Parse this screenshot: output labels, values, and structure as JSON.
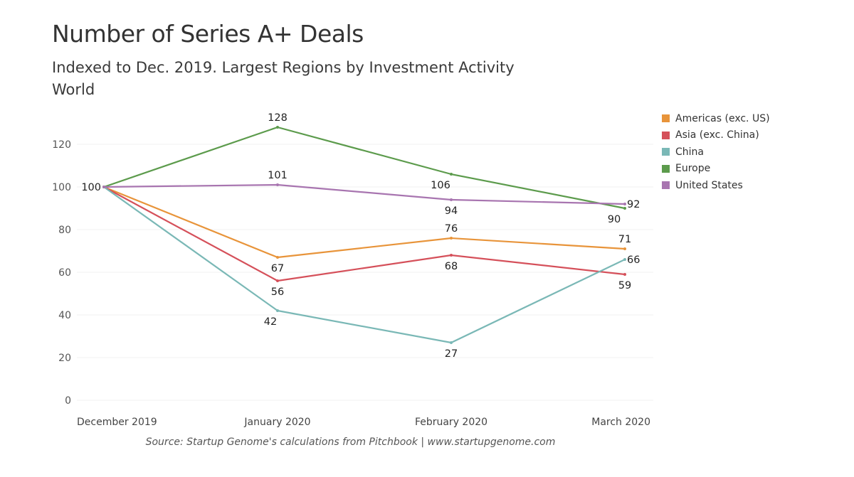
{
  "chart_data": {
    "type": "line",
    "title": "Number of Series A+ Deals",
    "subtitle": "Indexed to Dec. 2019. Largest Regions by Investment Activity",
    "subtitle2": "World",
    "source": "Source: Startup Genome's calculations from Pitchbook | www.startupgenome.com",
    "xlabel": "",
    "ylabel": "",
    "categories": [
      "December 2019",
      "January 2020",
      "February 2020",
      "March 2020"
    ],
    "ylim": [
      0,
      135
    ],
    "yticks": [
      0,
      20,
      40,
      60,
      80,
      100,
      120
    ],
    "grid": true,
    "legend_position": "right",
    "series": [
      {
        "name": "Americas (exc. US)",
        "color": "#e8943a",
        "values": [
          100,
          67,
          76,
          71
        ]
      },
      {
        "name": "Asia (exc. China)",
        "color": "#d5505a",
        "values": [
          100,
          56,
          68,
          59
        ]
      },
      {
        "name": "China",
        "color": "#7ab8b6",
        "values": [
          100,
          42,
          27,
          66
        ]
      },
      {
        "name": "Europe",
        "color": "#5c9b4c",
        "values": [
          100,
          128,
          106,
          90
        ]
      },
      {
        "name": "United States",
        "color": "#a875b0",
        "values": [
          100,
          101,
          94,
          92
        ]
      }
    ],
    "data_labels": [
      {
        "series": 0,
        "point": 1,
        "text": "67",
        "pos": "below"
      },
      {
        "series": 0,
        "point": 2,
        "text": "76",
        "pos": "above"
      },
      {
        "series": 0,
        "point": 3,
        "text": "71",
        "pos": "above"
      },
      {
        "series": 1,
        "point": 1,
        "text": "56",
        "pos": "below"
      },
      {
        "series": 1,
        "point": 2,
        "text": "68",
        "pos": "below"
      },
      {
        "series": 1,
        "point": 3,
        "text": "59",
        "pos": "below"
      },
      {
        "series": 2,
        "point": 1,
        "text": "42",
        "pos": "below"
      },
      {
        "series": 2,
        "point": 2,
        "text": "27",
        "pos": "below"
      },
      {
        "series": 2,
        "point": 3,
        "text": "66",
        "pos": "right"
      },
      {
        "series": 3,
        "point": 1,
        "text": "128",
        "pos": "above"
      },
      {
        "series": 3,
        "point": 2,
        "text": "106",
        "pos": "below-left"
      },
      {
        "series": 3,
        "point": 3,
        "text": "90",
        "pos": "below-left"
      },
      {
        "series": 4,
        "point": 0,
        "text": "100",
        "pos": "left"
      },
      {
        "series": 4,
        "point": 1,
        "text": "101",
        "pos": "above"
      },
      {
        "series": 4,
        "point": 2,
        "text": "94",
        "pos": "below"
      },
      {
        "series": 4,
        "point": 3,
        "text": "92",
        "pos": "right"
      }
    ]
  }
}
